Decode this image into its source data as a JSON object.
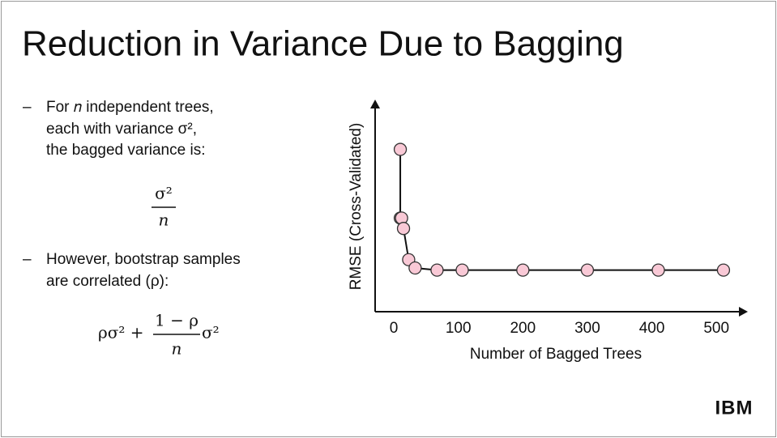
{
  "title": "Reduction in Variance Due to Bagging",
  "bullets": [
    {
      "lines": [
        "For 𝑛 independent trees,",
        "each with variance σ²,",
        "the bagged variance is:"
      ],
      "formula": {
        "numerator": "σ²",
        "denominator": "𝑛"
      }
    },
    {
      "lines": [
        "However, bootstrap samples",
        "are correlated (ρ):"
      ],
      "formula": {
        "prefix": "ρσ² +",
        "numerator": "1 − ρ",
        "denominator": "𝑛",
        "suffix": "σ²"
      }
    }
  ],
  "logo": "IBM",
  "chart_data": {
    "type": "line",
    "xlabel": "Number of Bagged Trees",
    "ylabel": "RMSE (Cross-Validated)",
    "x": [
      10,
      10,
      12,
      15,
      23,
      33,
      67,
      106,
      200,
      300,
      410,
      511
    ],
    "values": [
      0.78,
      0.45,
      0.45,
      0.4,
      0.25,
      0.21,
      0.2,
      0.2,
      0.2,
      0.2,
      0.2,
      0.2
    ],
    "color": "#f9c9d6",
    "xlim": [
      -29,
      545
    ],
    "xticks": [
      0,
      100,
      200,
      300,
      400,
      500
    ],
    "ylim": [
      0,
      1
    ],
    "grid": false
  }
}
